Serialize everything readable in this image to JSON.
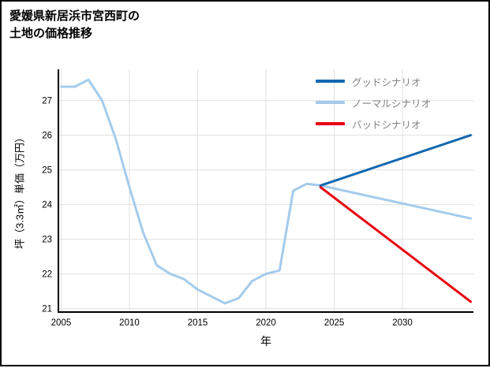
{
  "header": {
    "title_lines": [
      "愛媛県新居浜市宮西町の",
      "土地の価格推移"
    ]
  },
  "chart_data": {
    "type": "line",
    "title": "愛媛県新居浜市宮西町の土地の価格推移",
    "xlabel": "年",
    "ylabel": "坪（3.3㎡）単価（万円）",
    "xlim": [
      2004.8,
      2035.2
    ],
    "ylim": [
      20.9,
      27.9
    ],
    "xticks": [
      2005,
      2010,
      2015,
      2020,
      2025,
      2030
    ],
    "yticks": [
      21,
      22,
      23,
      24,
      25,
      26,
      27
    ],
    "grid": true,
    "legend_position": "top-right",
    "colors": {
      "grid": "#e0e0e0",
      "axis": "#000000",
      "legend_text": "#808080",
      "good": "#1167b1",
      "normal": "#a4cbec",
      "bad": "#e8000d"
    },
    "series": [
      {
        "key": "good",
        "name": "グッドシナリオ",
        "color": "#1167b1",
        "draw_order": 2,
        "x": [
          2024,
          2035
        ],
        "y": [
          24.55,
          26.0
        ]
      },
      {
        "key": "normal",
        "name": "ノーマルシナリオ",
        "color": "#a4cbec",
        "draw_order": 1,
        "x": [
          2005,
          2006,
          2007,
          2008,
          2009,
          2010,
          2011,
          2012,
          2013,
          2014,
          2015,
          2016,
          2017,
          2018,
          2019,
          2020,
          2021,
          2022,
          2023,
          2024,
          2035
        ],
        "y": [
          27.4,
          27.4,
          27.6,
          27.0,
          25.9,
          24.5,
          23.2,
          22.25,
          22.0,
          21.85,
          21.55,
          21.35,
          21.15,
          21.3,
          21.8,
          22.0,
          22.1,
          24.4,
          24.6,
          24.55,
          23.6
        ]
      },
      {
        "key": "bad",
        "name": "バッドシナリオ",
        "color": "#e8000d",
        "draw_order": 3,
        "x": [
          2024,
          2035
        ],
        "y": [
          24.5,
          21.2
        ]
      }
    ]
  }
}
